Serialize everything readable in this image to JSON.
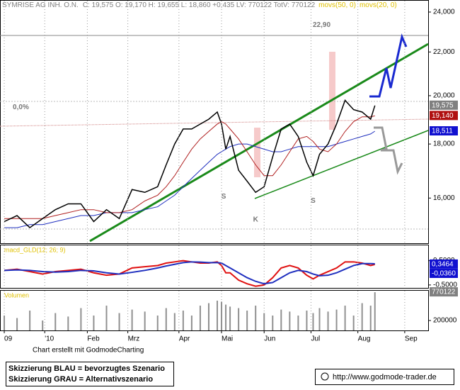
{
  "chart_data": [
    {
      "type": "line",
      "title": "SYMRISE AG INH. O.N.",
      "subtitle": "C: 19,575 O: 19,170 H: 19,655 L: 18,860 +0,435 LV: 770122 TotV: 770122",
      "log_scale": true,
      "color": "#000000",
      "legend_color": "#e0c000",
      "x": [
        2,
        8,
        14,
        20,
        26,
        32,
        38,
        44,
        50,
        56,
        62,
        68,
        74,
        78,
        82,
        86,
        90,
        94,
        98,
        102,
        104,
        106,
        108,
        112,
        116,
        120,
        124,
        128,
        132,
        136,
        140,
        144,
        147,
        150,
        154,
        158,
        162,
        166,
        170,
        174,
        176
      ],
      "values": [
        15.2,
        15.4,
        15.0,
        15.3,
        15.6,
        15.8,
        15.8,
        15.2,
        15.6,
        15.3,
        16.3,
        16.2,
        16.4,
        17.2,
        18.0,
        18.6,
        18.6,
        18.8,
        19.0,
        19.3,
        18.8,
        17.8,
        18.3,
        17.0,
        16.6,
        16.2,
        16.4,
        17.5,
        18.6,
        18.8,
        18.3,
        17.3,
        16.8,
        17.6,
        18.0,
        18.8,
        19.8,
        19.4,
        19.3,
        19.0,
        19.575
      ],
      "series": [
        {
          "name": "movs(50, 0)",
          "color": "#1f2fbf",
          "values": [
            15.0,
            15.0,
            15.1,
            15.1,
            15.2,
            15.3,
            15.4,
            15.4,
            15.5,
            15.5,
            15.5,
            15.6,
            15.7,
            15.9,
            16.1,
            16.4,
            16.7,
            17.0,
            17.3,
            17.6,
            17.7,
            17.8,
            17.9,
            18.0,
            18.0,
            17.9,
            17.8,
            17.7,
            17.7,
            17.8,
            17.9,
            17.9,
            17.9,
            17.9,
            17.9,
            18.0,
            18.1,
            18.2,
            18.3,
            18.4,
            18.511
          ]
        },
        {
          "name": "movs(20, 0)",
          "color": "#b02020",
          "values": [
            15.3,
            15.3,
            15.3,
            15.3,
            15.4,
            15.5,
            15.6,
            15.6,
            15.5,
            15.5,
            15.6,
            15.9,
            16.1,
            16.4,
            16.8,
            17.3,
            17.8,
            18.2,
            18.5,
            18.8,
            18.9,
            18.8,
            18.6,
            18.2,
            17.7,
            17.2,
            16.8,
            16.8,
            17.2,
            17.7,
            18.2,
            18.3,
            18.1,
            17.8,
            17.7,
            18.0,
            18.5,
            18.9,
            19.1,
            19.1,
            19.14
          ]
        }
      ],
      "xlim": [
        0,
        201
      ],
      "ylim": [
        14.5,
        24.6
      ],
      "yticks": [
        {
          "value": 16,
          "label": "16,000"
        },
        {
          "value": 18,
          "label": "18,000"
        },
        {
          "value": 20,
          "label": "20,000"
        },
        {
          "value": 22,
          "label": "22,000"
        },
        {
          "value": 24,
          "label": "24,000"
        }
      ],
      "last_labels": [
        {
          "value": 19.575,
          "label": "19,575",
          "color": "#808080"
        },
        {
          "value": 19.14,
          "label": "19,140",
          "color": "#b01010"
        },
        {
          "value": 18.511,
          "label": "18,511",
          "color": "#1010d0"
        }
      ],
      "annotations": [
        {
          "text": "22,90",
          "x": 151,
          "y": 22.9
        },
        {
          "text": "0,0%",
          "x": 6,
          "y": 19.8
        },
        {
          "text": "S",
          "x": 105,
          "y": 16.3
        },
        {
          "text": "K",
          "x": 120,
          "y": 15.5
        },
        {
          "text": "S",
          "x": 147,
          "y": 16.15
        }
      ]
    },
    {
      "type": "line",
      "title": "macd_GLD(12; 26; 9)",
      "x": [
        2,
        8,
        14,
        20,
        26,
        32,
        38,
        44,
        50,
        56,
        62,
        68,
        74,
        78,
        82,
        86,
        90,
        94,
        98,
        102,
        104,
        106,
        108,
        112,
        116,
        120,
        124,
        128,
        132,
        136,
        140,
        144,
        147,
        150,
        154,
        158,
        162,
        166,
        170,
        174,
        176
      ],
      "series": [
        {
          "color": "#e01010",
          "values": [
            0.1,
            0.15,
            0.05,
            -0.05,
            0.05,
            0.1,
            0.15,
            0.0,
            -0.1,
            -0.05,
            0.2,
            0.25,
            0.3,
            0.4,
            0.45,
            0.5,
            0.45,
            0.4,
            0.4,
            0.45,
            0.3,
            0.0,
            0.0,
            -0.3,
            -0.45,
            -0.55,
            -0.5,
            -0.2,
            0.2,
            0.3,
            0.2,
            -0.1,
            -0.25,
            -0.1,
            0.05,
            0.2,
            0.45,
            0.45,
            0.4,
            0.3,
            0.3464
          ]
        },
        {
          "color": "#1f2fbf",
          "values": [
            0.1,
            0.12,
            0.1,
            0.05,
            0.03,
            0.05,
            0.1,
            0.08,
            0.0,
            -0.05,
            0.02,
            0.1,
            0.2,
            0.28,
            0.35,
            0.42,
            0.45,
            0.44,
            0.42,
            0.42,
            0.4,
            0.3,
            0.2,
            0.0,
            -0.2,
            -0.35,
            -0.45,
            -0.4,
            -0.2,
            0.0,
            0.1,
            0.05,
            -0.05,
            -0.12,
            -0.1,
            0.0,
            0.15,
            0.3,
            0.38,
            0.38,
            0.37
          ]
        }
      ],
      "xlim": [
        0,
        201
      ],
      "ylim": [
        -0.62,
        1.13
      ],
      "yticks": [
        {
          "value": -0.5,
          "label": "-0,5000"
        },
        {
          "value": 0.5,
          "label": "0,5000"
        }
      ],
      "last_labels": [
        {
          "value": 0.3464,
          "label": "0,3464",
          "color": "#1010d0"
        },
        {
          "value": -0.036,
          "label": "-0,0360",
          "color": "#1010d0"
        }
      ]
    },
    {
      "type": "bar",
      "title": "Volumen",
      "color": "#909090",
      "x": [
        2,
        8,
        14,
        20,
        26,
        32,
        38,
        44,
        50,
        56,
        62,
        68,
        74,
        78,
        82,
        86,
        90,
        94,
        98,
        102,
        104,
        106,
        108,
        112,
        116,
        120,
        124,
        128,
        132,
        136,
        140,
        144,
        147,
        150,
        154,
        158,
        162,
        166,
        170,
        174,
        176
      ],
      "values": [
        300000,
        250000,
        400000,
        200000,
        350000,
        280000,
        450000,
        300000,
        500000,
        350000,
        420000,
        380000,
        300000,
        450000,
        350000,
        400000,
        300000,
        500000,
        550000,
        600000,
        580000,
        520000,
        480000,
        450000,
        400000,
        500000,
        350000,
        300000,
        420000,
        380000,
        300000,
        400000,
        350000,
        450000,
        380000,
        420000,
        500000,
        300000,
        550000,
        500000,
        770122
      ],
      "xlim": [
        0,
        201
      ],
      "ylim": [
        0,
        800000
      ],
      "yticks": [
        200000
      ],
      "last_labels": [
        {
          "value": 770122,
          "label": "770122",
          "color": "#808080"
        }
      ],
      "xticks": [
        {
          "value": 2,
          "label": "09"
        },
        {
          "value": 21,
          "label": "'10"
        },
        {
          "value": 41,
          "label": "Feb"
        },
        {
          "value": 60,
          "label": "Mrz"
        },
        {
          "value": 84,
          "label": "Apr"
        },
        {
          "value": 104,
          "label": "Mai"
        },
        {
          "value": 124,
          "label": "Jun"
        },
        {
          "value": 146,
          "label": "Jul"
        },
        {
          "value": 168,
          "label": "Aug"
        },
        {
          "value": 190,
          "label": "Sep"
        }
      ]
    }
  ],
  "footer": {
    "credit": "Chart erstellt mit GodmodeCharting",
    "legend": [
      "Skizzierung BLAU = bevorzugtes Szenario",
      "Skizzierung GRAU = Alternativszenario"
    ],
    "url": "http://www.godmode-trader.de"
  }
}
